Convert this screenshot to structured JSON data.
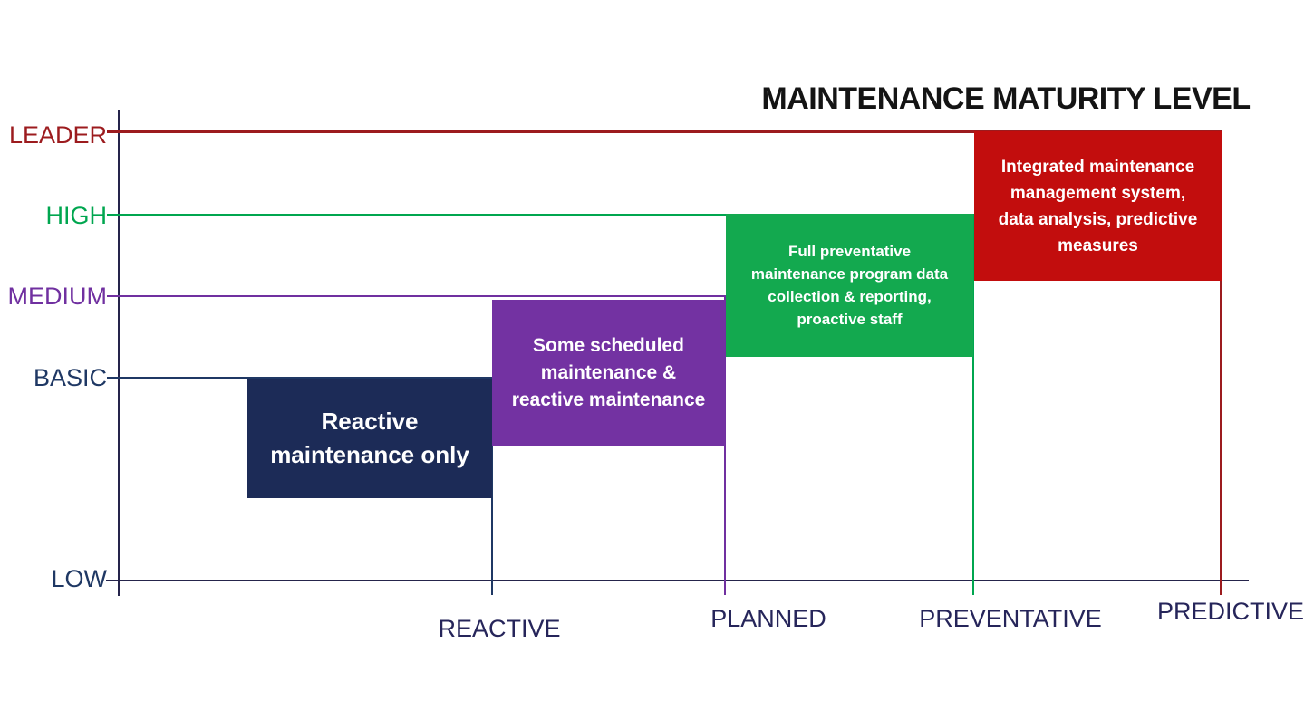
{
  "title": "MAINTENANCE MATURITY LEVEL",
  "y_axis": {
    "levels": [
      {
        "label": "LEADER",
        "color": "#9c1b1e"
      },
      {
        "label": "HIGH",
        "color": "#00a64f"
      },
      {
        "label": "MEDIUM",
        "color": "#7030a0"
      },
      {
        "label": "BASIC",
        "color": "#1f3864"
      },
      {
        "label": "LOW",
        "color": "#1f3864"
      }
    ]
  },
  "x_axis": {
    "categories": [
      {
        "label": "REACTIVE"
      },
      {
        "label": "PLANNED"
      },
      {
        "label": "PREVENTATIVE"
      },
      {
        "label": "PREDICTIVE"
      }
    ]
  },
  "boxes": [
    {
      "category": "REACTIVE",
      "level": "BASIC",
      "color": "#1c2b57",
      "lines": [
        "Reactive",
        "maintenance only"
      ]
    },
    {
      "category": "PLANNED",
      "level": "MEDIUM",
      "color": "#7332a2",
      "lines": [
        "Some scheduled",
        "maintenance &",
        "reactive maintenance"
      ]
    },
    {
      "category": "PREVENTATIVE",
      "level": "HIGH",
      "color": "#13a94f",
      "lines": [
        "Full preventative",
        "maintenance program data",
        "collection & reporting,",
        "proactive staff"
      ]
    },
    {
      "category": "PREDICTIVE",
      "level": "LEADER",
      "color": "#c20d0d",
      "lines": [
        "Integrated maintenance",
        "management system,",
        "data analysis, predictive",
        "measures"
      ]
    }
  ],
  "chart_data": {
    "type": "step",
    "title": "MAINTENANCE MATURITY LEVEL",
    "xlabel": "",
    "ylabel": "",
    "x_categories": [
      "REACTIVE",
      "PLANNED",
      "PREVENTATIVE",
      "PREDICTIVE"
    ],
    "y_levels": [
      "LOW",
      "BASIC",
      "MEDIUM",
      "HIGH",
      "LEADER"
    ],
    "grid": false,
    "legend_position": "none",
    "series": [
      {
        "category": "REACTIVE",
        "level": "BASIC",
        "description": "Reactive maintenance only"
      },
      {
        "category": "PLANNED",
        "level": "MEDIUM",
        "description": "Some scheduled maintenance & reactive maintenance"
      },
      {
        "category": "PREVENTATIVE",
        "level": "HIGH",
        "description": "Full preventative maintenance program data collection & reporting, proactive staff"
      },
      {
        "category": "PREDICTIVE",
        "level": "LEADER",
        "description": "Integrated maintenance management system, data analysis, predictive measures"
      }
    ]
  }
}
